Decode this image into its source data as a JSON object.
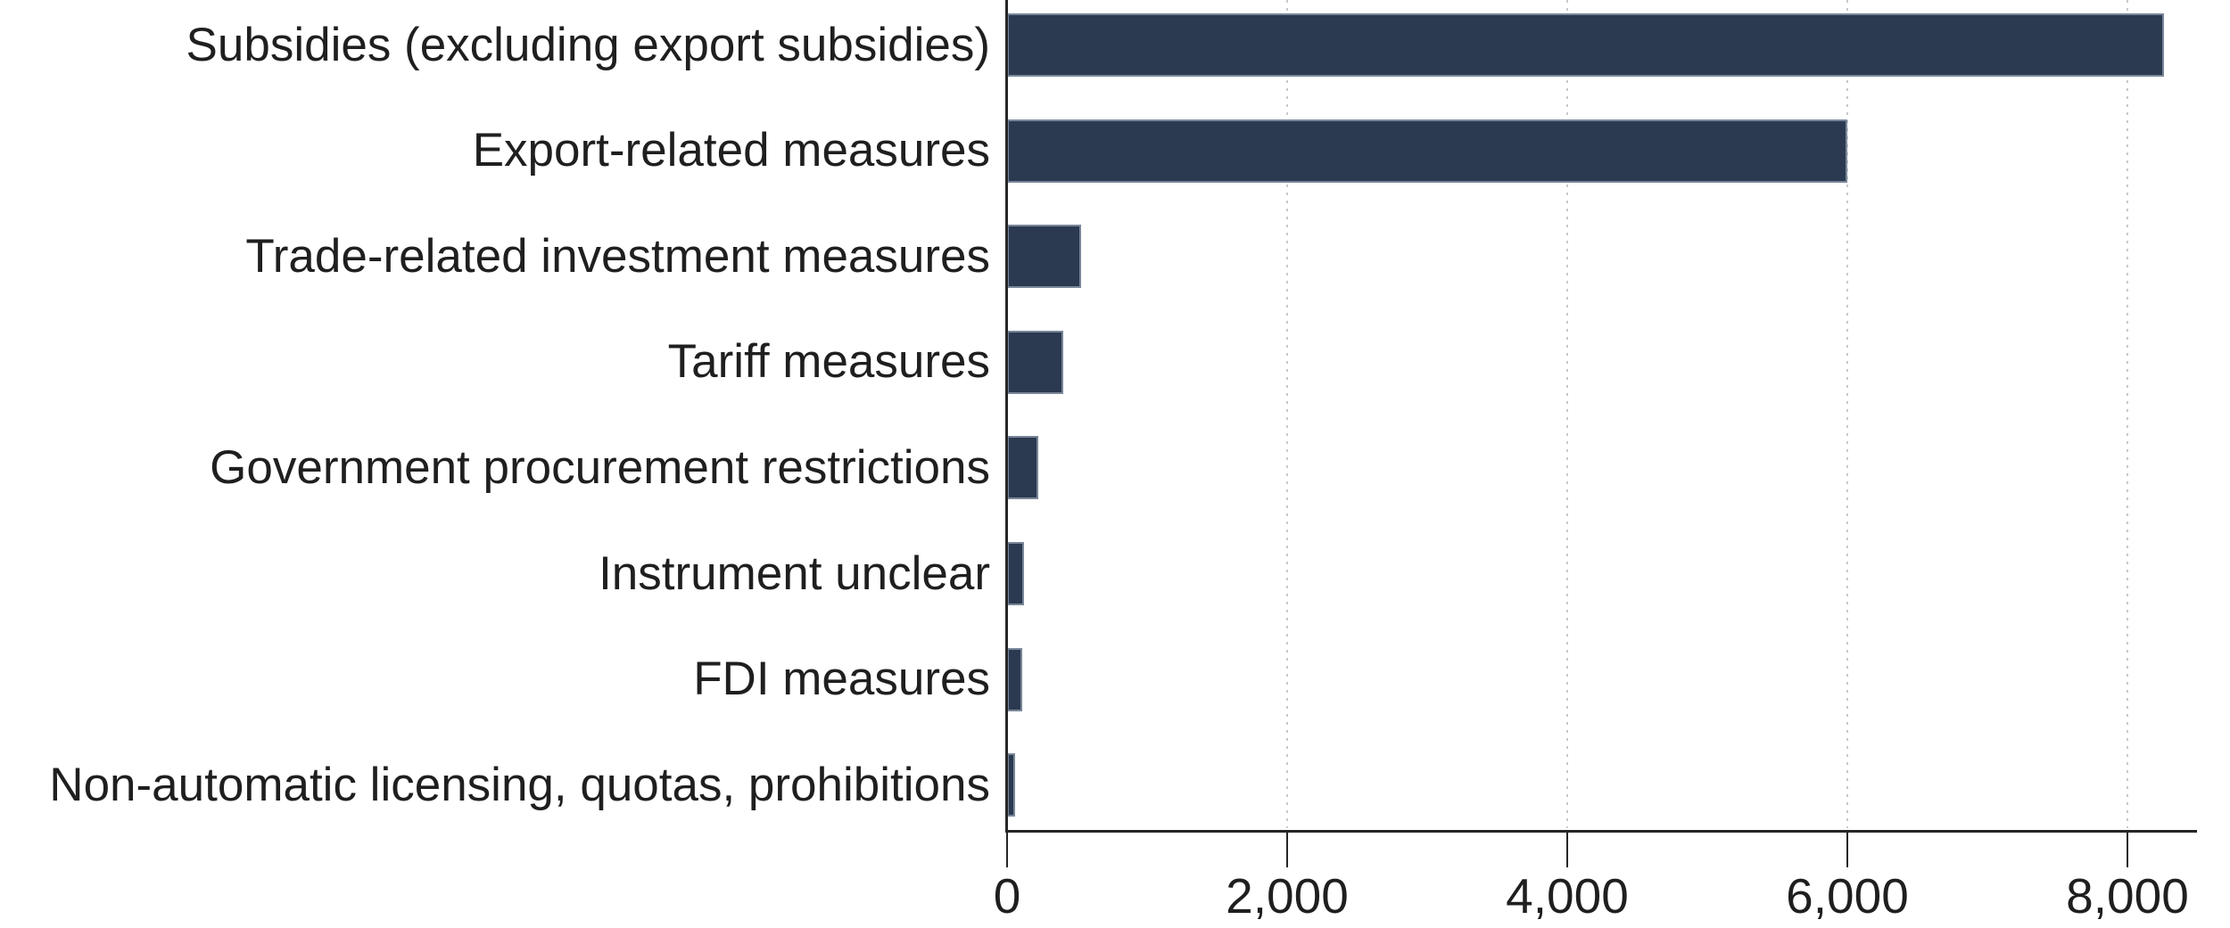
{
  "chart_data": {
    "type": "bar",
    "orientation": "horizontal",
    "title": "",
    "xlabel": "",
    "ylabel": "",
    "xlim": [
      0,
      8500
    ],
    "grid": "dotted-vertical-at-x-ticks",
    "legend": "none",
    "categories": [
      "Subsidies (excluding export subsidies)",
      "Export-related measures",
      "Trade-related investment measures",
      "Tariff measures",
      "Government procurement restrictions",
      "Instrument unclear",
      "FDI measures",
      "Non-automatic licensing, quotas, prohibitions"
    ],
    "values": [
      8260,
      6000,
      530,
      400,
      225,
      120,
      110,
      55
    ],
    "x_ticks": [
      {
        "value": 0,
        "label": "0"
      },
      {
        "value": 2000,
        "label": "2,000"
      },
      {
        "value": 4000,
        "label": "4,000"
      },
      {
        "value": 6000,
        "label": "6,000"
      },
      {
        "value": 8000,
        "label": "8,000"
      }
    ],
    "colors": {
      "bar_fill": "#2b3a50",
      "bar_border": "#7a8799",
      "axis": "#262626",
      "text": "#1f1f1f",
      "gridline_dot": "#c9c9c9",
      "background": "#ffffff"
    }
  }
}
